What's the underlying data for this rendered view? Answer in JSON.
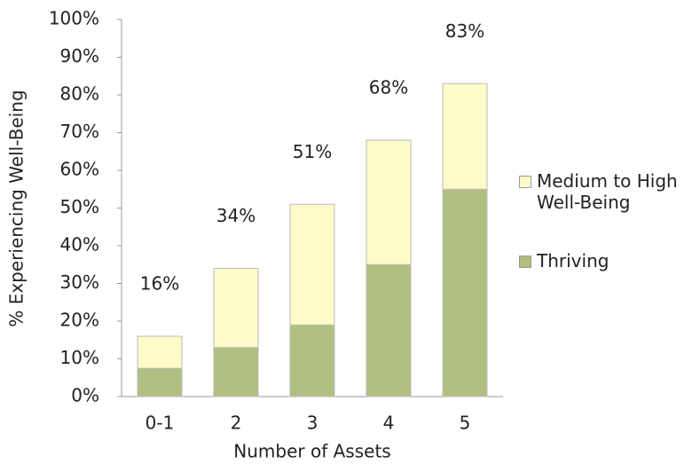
{
  "chart_data": {
    "type": "stacked_bar",
    "xlabel": "Number of Assets",
    "ylabel": "% Experiencing Well-Being",
    "categories": [
      "0-1",
      "2",
      "3",
      "4",
      "5"
    ],
    "series": [
      {
        "name": "Thriving",
        "color": "#b0bf7f",
        "values": [
          7.5,
          13,
          19,
          35,
          55
        ]
      },
      {
        "name": "Medium to High Well-Being",
        "color": "#fffac8",
        "values": [
          8.5,
          21,
          32,
          33,
          28
        ]
      }
    ],
    "totals": [
      16,
      34,
      51,
      68,
      83
    ],
    "total_labels": [
      "16%",
      "34%",
      "51%",
      "68%",
      "83%"
    ],
    "ylim": [
      0,
      100
    ],
    "yticks": [
      {
        "value": 0,
        "label": "0%"
      },
      {
        "value": 10,
        "label": "10%"
      },
      {
        "value": 20,
        "label": "20%"
      },
      {
        "value": 30,
        "label": "30%"
      },
      {
        "value": 40,
        "label": "40%"
      },
      {
        "value": 50,
        "label": "50%"
      },
      {
        "value": 60,
        "label": "60%"
      },
      {
        "value": 70,
        "label": "70%"
      },
      {
        "value": 80,
        "label": "80%"
      },
      {
        "value": 90,
        "label": "90%"
      },
      {
        "value": 100,
        "label": "100%"
      }
    ],
    "grid": false
  }
}
